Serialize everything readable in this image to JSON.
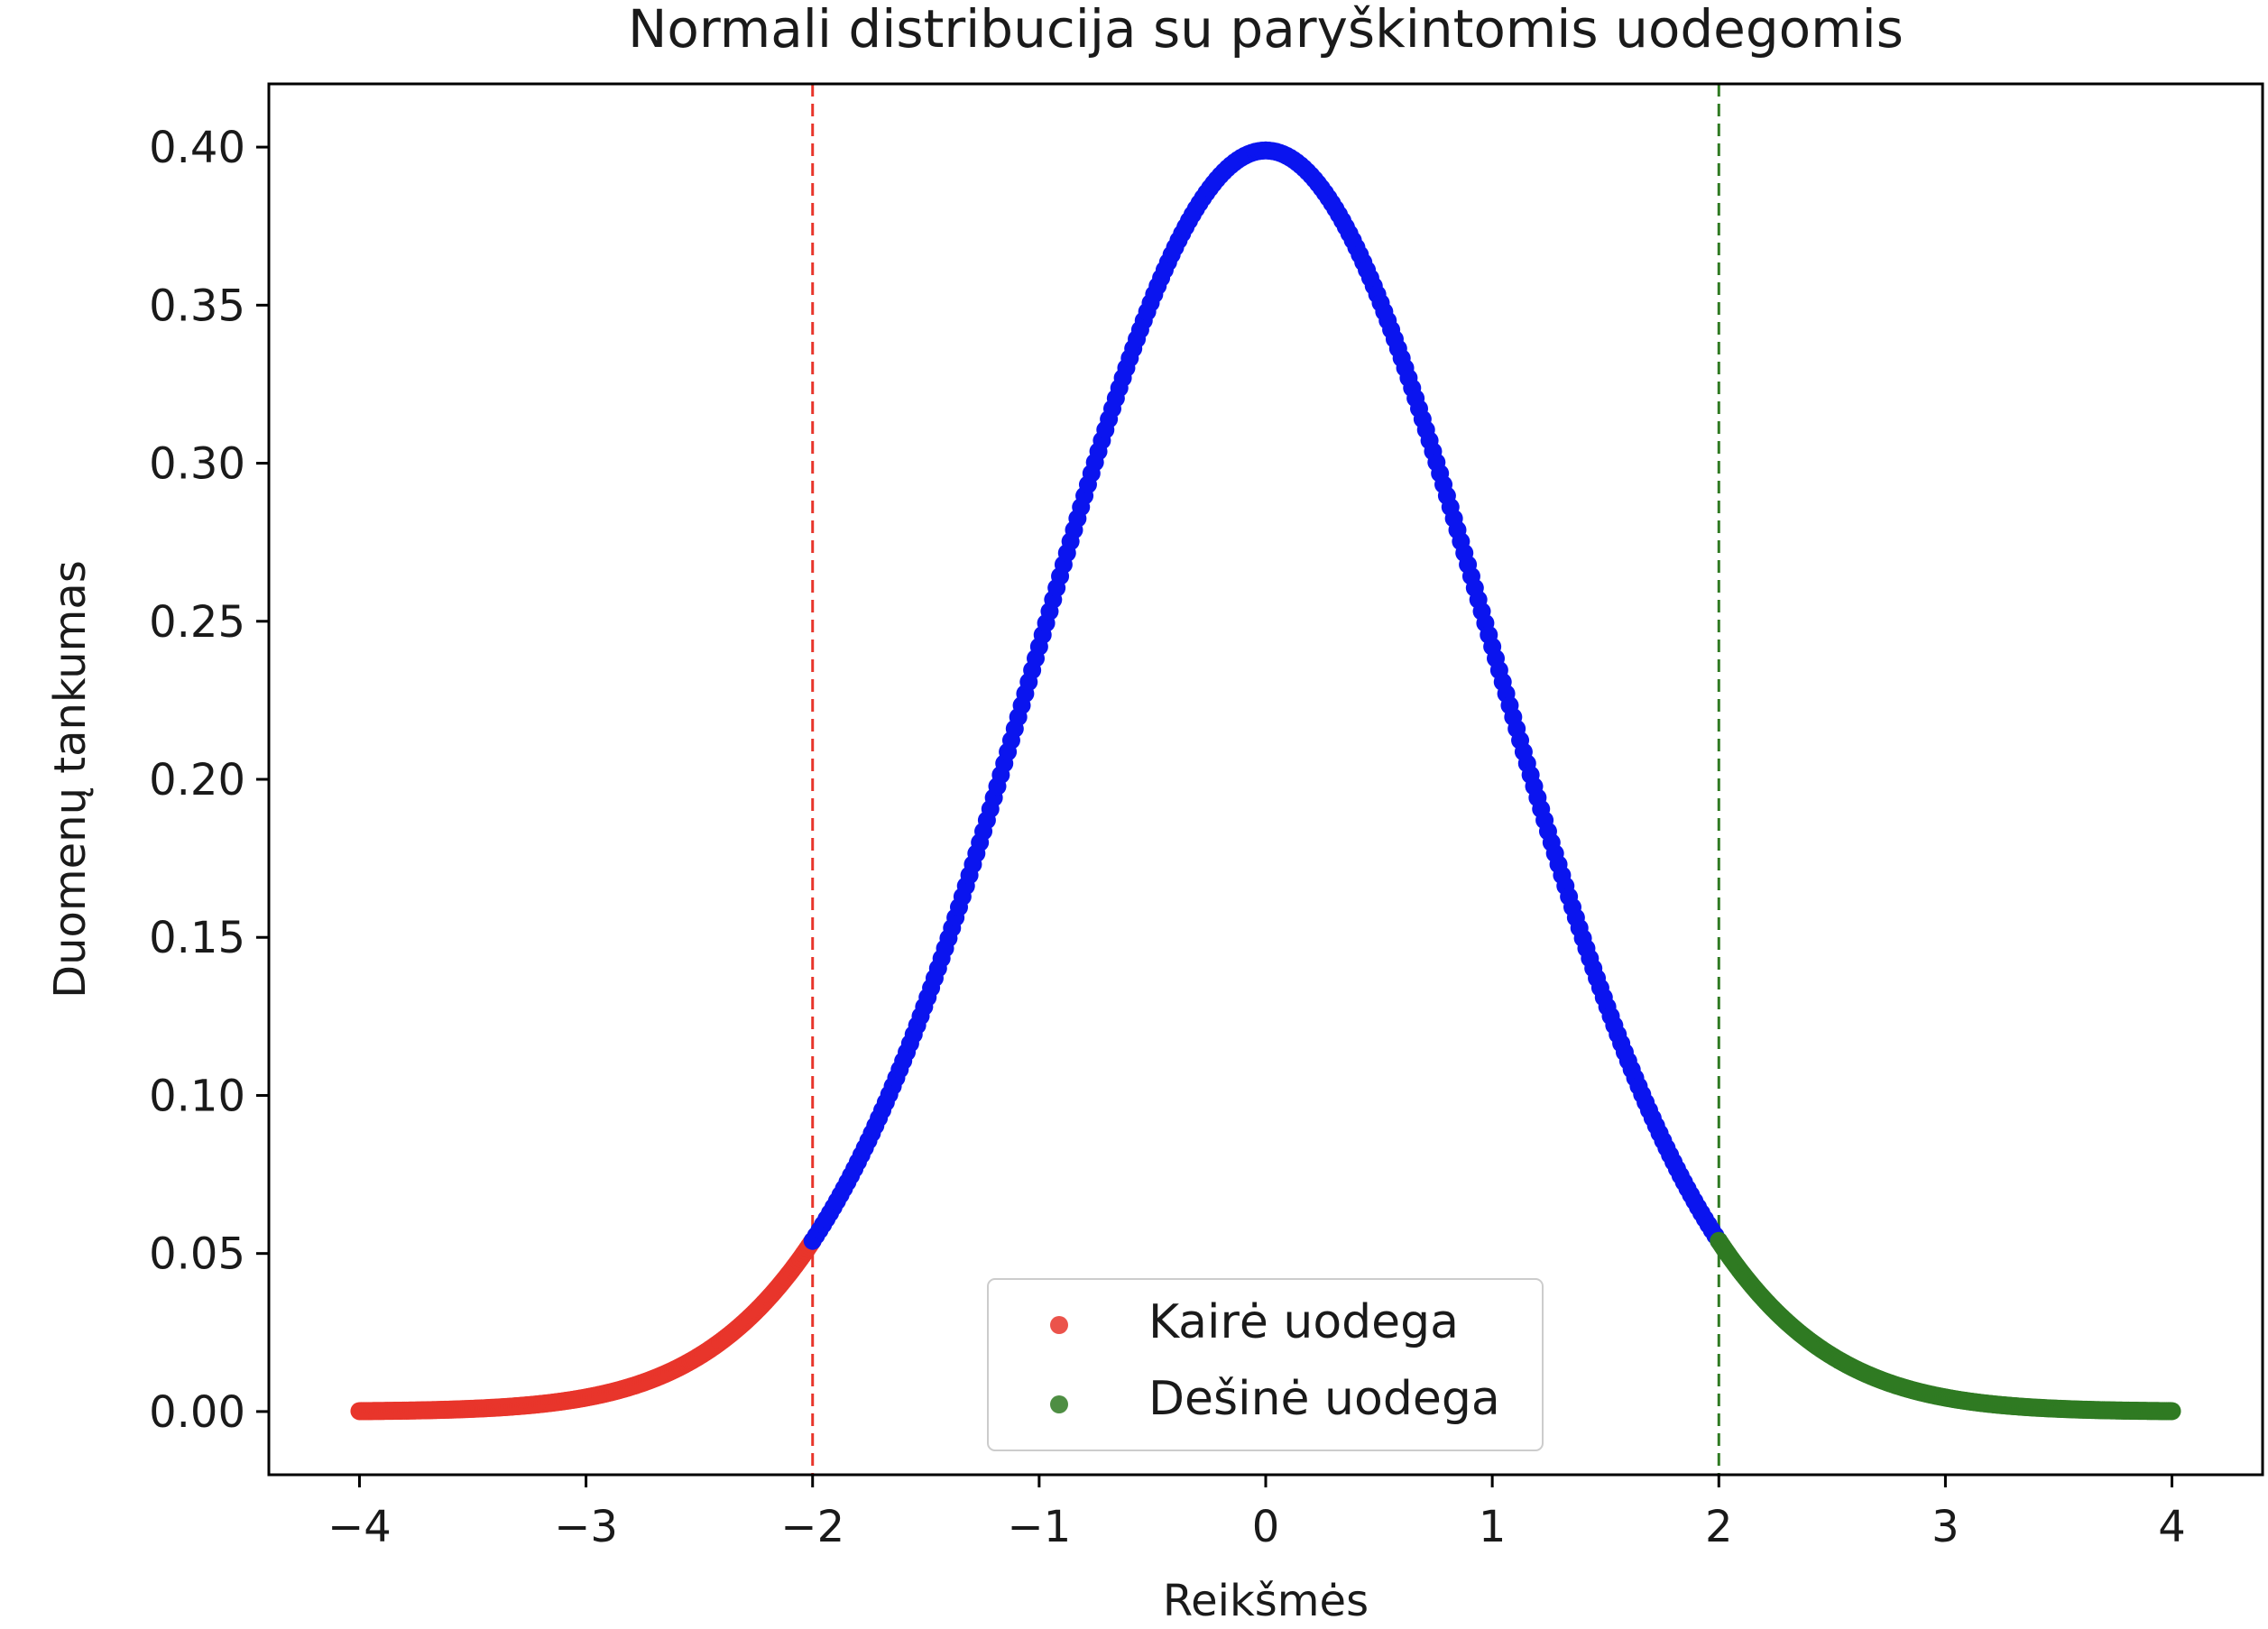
{
  "chart_data": {
    "type": "scatter",
    "title": "Normali distribucija su paryškintomis uodegomis",
    "xlabel": "Reikšmės",
    "ylabel": "Duomenų tankumas",
    "xlim": [
      -4.4,
      4.4
    ],
    "ylim": [
      -0.02,
      0.42
    ],
    "x_ticks": [
      -4,
      -3,
      -2,
      -1,
      0,
      1,
      2,
      3,
      4
    ],
    "x_tick_labels": [
      "−4",
      "−3",
      "−2",
      "−1",
      "0",
      "1",
      "2",
      "3",
      "4"
    ],
    "y_ticks": [
      0.0,
      0.05,
      0.1,
      0.15,
      0.2,
      0.25,
      0.3,
      0.35,
      0.4
    ],
    "y_tick_labels": [
      "0.00",
      "0.05",
      "0.10",
      "0.15",
      "0.20",
      "0.25",
      "0.30",
      "0.35",
      "0.40"
    ],
    "grid": false,
    "legend_position": "lower center",
    "function": "standard normal pdf, mean 0, std 1",
    "series": [
      {
        "name": "Kairė uodega",
        "color": "#e8352b",
        "x": [
          -4.0,
          -3.75,
          -3.5,
          -3.25,
          -3.0,
          -2.75,
          -2.5,
          -2.25,
          -2.0
        ],
        "y": [
          0.0001,
          0.0004,
          0.0009,
          0.002,
          0.0044,
          0.0091,
          0.0175,
          0.0317,
          0.054
        ]
      },
      {
        "name": "",
        "color": "#0a14ef",
        "x": [
          -2.0,
          -1.5,
          -1.0,
          -0.5,
          0.0,
          0.5,
          1.0,
          1.5,
          2.0
        ],
        "y": [
          0.054,
          0.1295,
          0.242,
          0.3521,
          0.3989,
          0.3521,
          0.242,
          0.1295,
          0.054
        ]
      },
      {
        "name": "Dešinė uodega",
        "color": "#2f7a22",
        "x": [
          2.0,
          2.25,
          2.5,
          2.75,
          3.0,
          3.25,
          3.5,
          3.75,
          4.0
        ],
        "y": [
          0.054,
          0.0317,
          0.0175,
          0.0091,
          0.0044,
          0.002,
          0.0009,
          0.0004,
          0.0001
        ]
      }
    ],
    "vertical_lines": [
      {
        "x": -2,
        "color": "#e8352b",
        "style": "dashed"
      },
      {
        "x": 2,
        "color": "#2f7a22",
        "style": "dashed"
      }
    ]
  }
}
